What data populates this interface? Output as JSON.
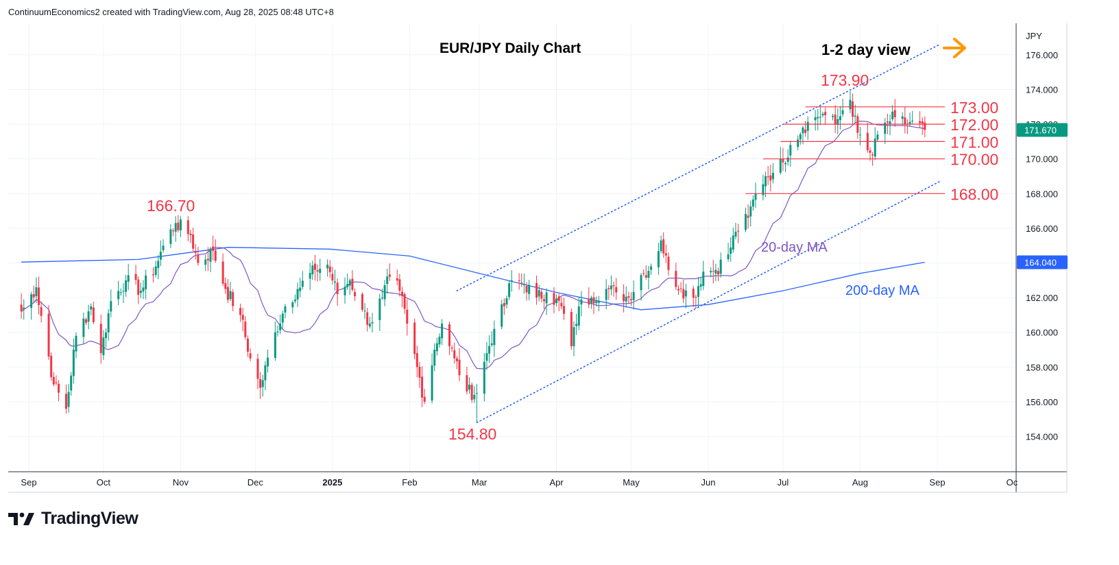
{
  "header": {
    "attribution": "ContinuumEconomics2 created with TradingView.com, Aug 28, 2025 08:48 UTC+8"
  },
  "footer": {
    "brand": "TradingView",
    "logo_icon": "tradingview-logo-icon"
  },
  "colors": {
    "up": "#089981",
    "down": "#f23645",
    "ma20": "#7e57c2",
    "ma200": "#2962ff",
    "channel": "#2962ff",
    "level": "#f23645",
    "label_red": "#f23645",
    "arrow": "#ff9800",
    "grid": "#f0f3fa",
    "axis_text": "#131722"
  },
  "chart_data": {
    "type": "candlestick",
    "title": "EUR/JPY Daily Chart",
    "currency_label": "JPY",
    "view_note": "1-2 day view",
    "ylim": [
      152.0,
      178.0
    ],
    "y_ticks": [
      "154.000",
      "156.000",
      "158.000",
      "160.000",
      "162.000",
      "164.000",
      "166.000",
      "168.000",
      "170.000",
      "172.000",
      "174.000",
      "176.000"
    ],
    "x_ticks": [
      "Sep",
      "Oct",
      "Nov",
      "Dec",
      "2025",
      "Feb",
      "Mar",
      "Apr",
      "May",
      "Jun",
      "Jul",
      "Aug",
      "Sep",
      "Oc"
    ],
    "last_price": "171.670",
    "ma200_value": "164.040",
    "key_points": [
      {
        "label": "166.70",
        "date": "2024-10-30",
        "value": 166.7
      },
      {
        "label": "154.80",
        "date": "2025-02-28",
        "value": 154.8
      },
      {
        "label": "173.90",
        "date": "2025-07-28",
        "value": 173.9
      }
    ],
    "levels": [
      {
        "label": "173.00",
        "value": 173.0
      },
      {
        "label": "172.00",
        "value": 172.0
      },
      {
        "label": "171.00",
        "value": 171.0
      },
      {
        "label": "170.00",
        "value": 170.0
      },
      {
        "label": "168.00",
        "value": 168.0
      }
    ],
    "moving_averages": [
      {
        "name": "20-day MA",
        "period": 20
      },
      {
        "name": "200-day MA",
        "period": 200
      }
    ],
    "anchors": [
      {
        "date": "2024-08-29",
        "close": 161.2
      },
      {
        "date": "2024-09-04",
        "close": 162.6
      },
      {
        "date": "2024-09-11",
        "close": 157.0
      },
      {
        "date": "2024-09-16",
        "close": 155.6
      },
      {
        "date": "2024-09-20",
        "close": 159.8
      },
      {
        "date": "2024-09-26",
        "close": 161.5
      },
      {
        "date": "2024-09-30",
        "close": 158.8
      },
      {
        "date": "2024-10-04",
        "close": 161.8
      },
      {
        "date": "2024-10-10",
        "close": 163.0
      },
      {
        "date": "2024-10-16",
        "close": 162.4
      },
      {
        "date": "2024-10-22",
        "close": 163.8
      },
      {
        "date": "2024-10-25",
        "close": 165.0
      },
      {
        "date": "2024-10-30",
        "close": 166.3
      },
      {
        "date": "2024-11-05",
        "close": 165.6
      },
      {
        "date": "2024-11-08",
        "close": 164.0
      },
      {
        "date": "2024-11-14",
        "close": 164.7
      },
      {
        "date": "2024-11-19",
        "close": 162.5
      },
      {
        "date": "2024-11-25",
        "close": 161.0
      },
      {
        "date": "2024-11-29",
        "close": 158.5
      },
      {
        "date": "2024-12-03",
        "close": 156.8
      },
      {
        "date": "2024-12-09",
        "close": 160.0
      },
      {
        "date": "2024-12-13",
        "close": 161.5
      },
      {
        "date": "2024-12-18",
        "close": 162.5
      },
      {
        "date": "2024-12-25",
        "close": 163.6
      },
      {
        "date": "2024-12-30",
        "close": 163.9
      },
      {
        "date": "2025-01-03",
        "close": 162.2
      },
      {
        "date": "2025-01-08",
        "close": 163.0
      },
      {
        "date": "2025-01-13",
        "close": 161.3
      },
      {
        "date": "2025-01-16",
        "close": 160.5
      },
      {
        "date": "2025-01-21",
        "close": 162.0
      },
      {
        "date": "2025-01-24",
        "close": 163.2
      },
      {
        "date": "2025-01-28",
        "close": 162.4
      },
      {
        "date": "2025-01-31",
        "close": 160.5
      },
      {
        "date": "2025-02-04",
        "close": 158.0
      },
      {
        "date": "2025-02-07",
        "close": 156.0
      },
      {
        "date": "2025-02-11",
        "close": 159.0
      },
      {
        "date": "2025-02-14",
        "close": 160.5
      },
      {
        "date": "2025-02-19",
        "close": 158.5
      },
      {
        "date": "2025-02-24",
        "close": 156.6
      },
      {
        "date": "2025-02-28",
        "close": 156.5
      },
      {
        "date": "2025-03-04",
        "close": 158.8
      },
      {
        "date": "2025-03-07",
        "close": 160.2
      },
      {
        "date": "2025-03-11",
        "close": 161.5
      },
      {
        "date": "2025-03-14",
        "close": 163.0
      },
      {
        "date": "2025-03-19",
        "close": 162.8
      },
      {
        "date": "2025-03-24",
        "close": 162.0
      },
      {
        "date": "2025-03-28",
        "close": 162.3
      },
      {
        "date": "2025-04-03",
        "close": 161.5
      },
      {
        "date": "2025-04-07",
        "close": 159.2
      },
      {
        "date": "2025-04-10",
        "close": 161.5
      },
      {
        "date": "2025-04-15",
        "close": 162.0
      },
      {
        "date": "2025-04-21",
        "close": 162.5
      },
      {
        "date": "2025-04-25",
        "close": 162.3
      },
      {
        "date": "2025-04-30",
        "close": 162.0
      },
      {
        "date": "2025-05-05",
        "close": 163.3
      },
      {
        "date": "2025-05-09",
        "close": 163.8
      },
      {
        "date": "2025-05-13",
        "close": 165.3
      },
      {
        "date": "2025-05-16",
        "close": 163.6
      },
      {
        "date": "2025-05-21",
        "close": 162.5
      },
      {
        "date": "2025-05-26",
        "close": 162.0
      },
      {
        "date": "2025-05-30",
        "close": 163.5
      },
      {
        "date": "2025-06-04",
        "close": 163.6
      },
      {
        "date": "2025-06-09",
        "close": 164.5
      },
      {
        "date": "2025-06-12",
        "close": 165.8
      },
      {
        "date": "2025-06-17",
        "close": 166.6
      },
      {
        "date": "2025-06-20",
        "close": 168.0
      },
      {
        "date": "2025-06-24",
        "close": 169.0
      },
      {
        "date": "2025-06-27",
        "close": 169.2
      },
      {
        "date": "2025-07-01",
        "close": 169.8
      },
      {
        "date": "2025-07-04",
        "close": 170.8
      },
      {
        "date": "2025-07-09",
        "close": 171.8
      },
      {
        "date": "2025-07-14",
        "close": 172.4
      },
      {
        "date": "2025-07-17",
        "close": 172.6
      },
      {
        "date": "2025-07-22",
        "close": 172.0
      },
      {
        "date": "2025-07-25",
        "close": 172.8
      },
      {
        "date": "2025-07-28",
        "close": 173.4
      },
      {
        "date": "2025-07-31",
        "close": 171.5
      },
      {
        "date": "2025-08-04",
        "close": 170.5
      },
      {
        "date": "2025-08-06",
        "close": 170.2
      },
      {
        "date": "2025-08-08",
        "close": 171.4
      },
      {
        "date": "2025-08-12",
        "close": 172.1
      },
      {
        "date": "2025-08-15",
        "close": 172.4
      },
      {
        "date": "2025-08-19",
        "close": 172.0
      },
      {
        "date": "2025-08-22",
        "close": 172.2
      },
      {
        "date": "2025-08-27",
        "close": 171.67
      }
    ]
  }
}
